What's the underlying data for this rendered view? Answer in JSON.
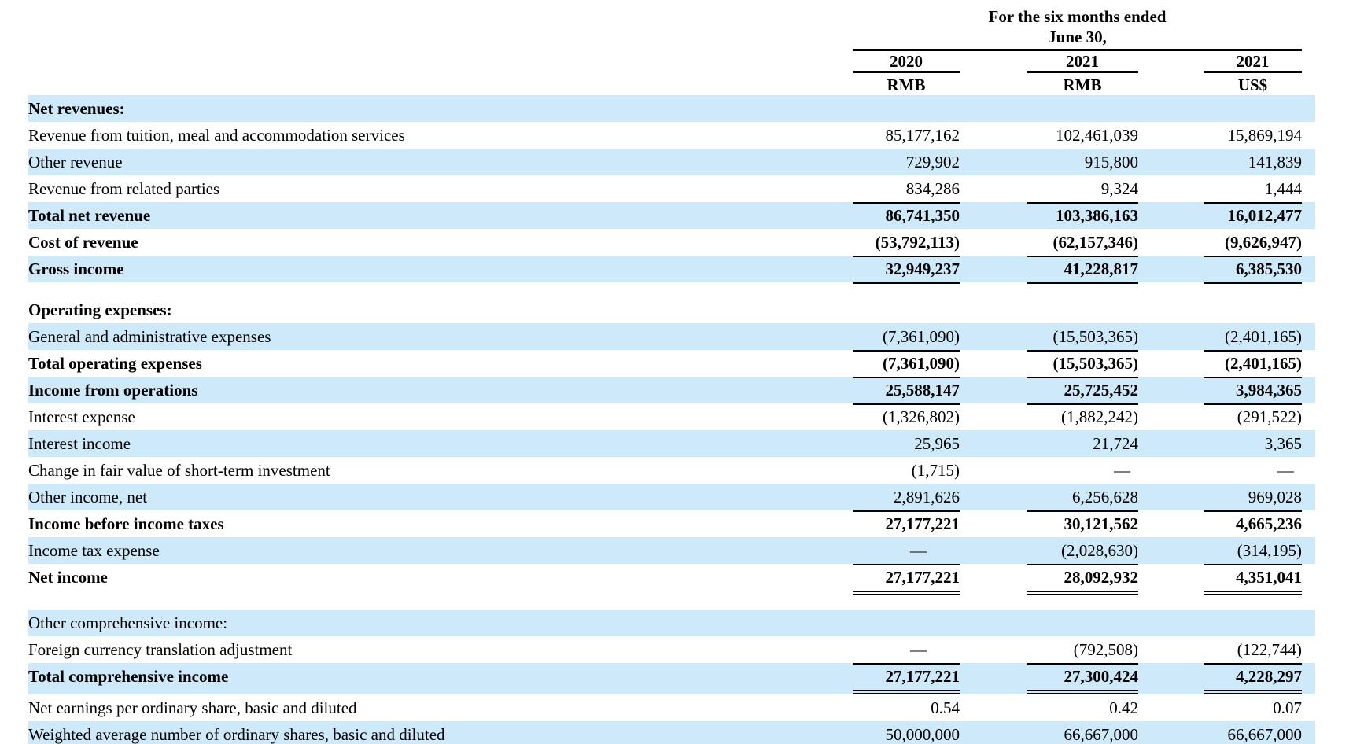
{
  "colors": {
    "stripe": "#cee9f9",
    "text": "#000000",
    "rule": "#000000"
  },
  "header": {
    "spanner_line1": "For the six months ended",
    "spanner_line2": "June 30,",
    "columns": [
      {
        "year": "2020",
        "currency": "RMB"
      },
      {
        "year": "2021",
        "currency": "RMB"
      },
      {
        "year": "2021",
        "currency": "US$"
      }
    ]
  },
  "table": {
    "rows": [
      {
        "label": "Net revenues:",
        "bold": true,
        "bg": "stripe",
        "values": null,
        "underline": "none"
      },
      {
        "label": "Revenue from tuition, meal and accommodation services",
        "bold": false,
        "bg": "white",
        "values": [
          "85,177,162",
          "102,461,039",
          "15,869,194"
        ],
        "underline": "none"
      },
      {
        "label": "Other revenue",
        "bold": false,
        "bg": "stripe",
        "values": [
          "729,902",
          "915,800",
          "141,839"
        ],
        "underline": "none"
      },
      {
        "label": "Revenue from related parties",
        "bold": false,
        "bg": "white",
        "values": [
          "834,286",
          "9,324",
          "1,444"
        ],
        "underline": "single"
      },
      {
        "label": "Total net revenue",
        "bold": true,
        "bg": "stripe",
        "values": [
          "86,741,350",
          "103,386,163",
          "16,012,477"
        ],
        "underline": "none"
      },
      {
        "label": "Cost of revenue",
        "bold": true,
        "bg": "white",
        "values": [
          "(53,792,113)",
          "(62,157,346)",
          "(9,626,947)"
        ],
        "underline": "single"
      },
      {
        "label": "Gross income",
        "bold": true,
        "bg": "stripe",
        "values": [
          "32,949,237",
          "41,228,817",
          "6,385,530"
        ],
        "underline": "single"
      },
      {
        "type": "spacer"
      },
      {
        "label": "Operating expenses:",
        "bold": true,
        "bg": "white",
        "values": null,
        "underline": "none"
      },
      {
        "label": "General and administrative expenses",
        "bold": false,
        "bg": "stripe",
        "values": [
          "(7,361,090)",
          "(15,503,365)",
          "(2,401,165)"
        ],
        "underline": "single"
      },
      {
        "label": "Total operating expenses",
        "bold": true,
        "bg": "white",
        "values": [
          "(7,361,090)",
          "(15,503,365)",
          "(2,401,165)"
        ],
        "underline": "single"
      },
      {
        "label": "Income from operations",
        "bold": true,
        "bg": "stripe",
        "values": [
          "25,588,147",
          "25,725,452",
          "3,984,365"
        ],
        "underline": "single"
      },
      {
        "label": "Interest expense",
        "bold": false,
        "bg": "white",
        "values": [
          "(1,326,802)",
          "(1,882,242)",
          "(291,522)"
        ],
        "underline": "none"
      },
      {
        "label": "Interest income",
        "bold": false,
        "bg": "stripe",
        "values": [
          "25,965",
          "21,724",
          "3,365"
        ],
        "underline": "none"
      },
      {
        "label": "Change in fair value of short-term investment",
        "bold": false,
        "bg": "white",
        "values": [
          "(1,715)",
          "—",
          "—"
        ],
        "underline": "none"
      },
      {
        "label": "Other income, net",
        "bold": false,
        "bg": "stripe",
        "values": [
          "2,891,626",
          "6,256,628",
          "969,028"
        ],
        "underline": "single"
      },
      {
        "label": "Income before income taxes",
        "bold": true,
        "bg": "white",
        "values": [
          "27,177,221",
          "30,121,562",
          "4,665,236"
        ],
        "underline": "none"
      },
      {
        "label": "Income tax expense",
        "bold": false,
        "bg": "stripe",
        "values": [
          "—",
          "(2,028,630)",
          "(314,195)"
        ],
        "underline": "single"
      },
      {
        "label": "Net income",
        "bold": true,
        "bg": "white",
        "values": [
          "27,177,221",
          "28,092,932",
          "4,351,041"
        ],
        "underline": "double"
      },
      {
        "type": "spacer"
      },
      {
        "label": "Other comprehensive income:",
        "bold": false,
        "bg": "stripe",
        "values": null,
        "underline": "none"
      },
      {
        "label": "Foreign currency translation adjustment",
        "bold": false,
        "bg": "white",
        "values": [
          "—",
          "(792,508)",
          "(122,744)"
        ],
        "underline": "single"
      },
      {
        "label": "Total comprehensive income",
        "bold": true,
        "bg": "stripe",
        "values": [
          "27,177,221",
          "27,300,424",
          "4,228,297"
        ],
        "underline": "double"
      },
      {
        "label": "Net earnings per ordinary share, basic and diluted",
        "bold": false,
        "bg": "white",
        "values": [
          "0.54",
          "0.42",
          "0.07"
        ],
        "underline": "none"
      },
      {
        "label": "Weighted average number of ordinary shares, basic and diluted",
        "bold": false,
        "bg": "stripe",
        "values": [
          "50,000,000",
          "66,667,000",
          "66,667,000"
        ],
        "underline": "none"
      }
    ]
  }
}
